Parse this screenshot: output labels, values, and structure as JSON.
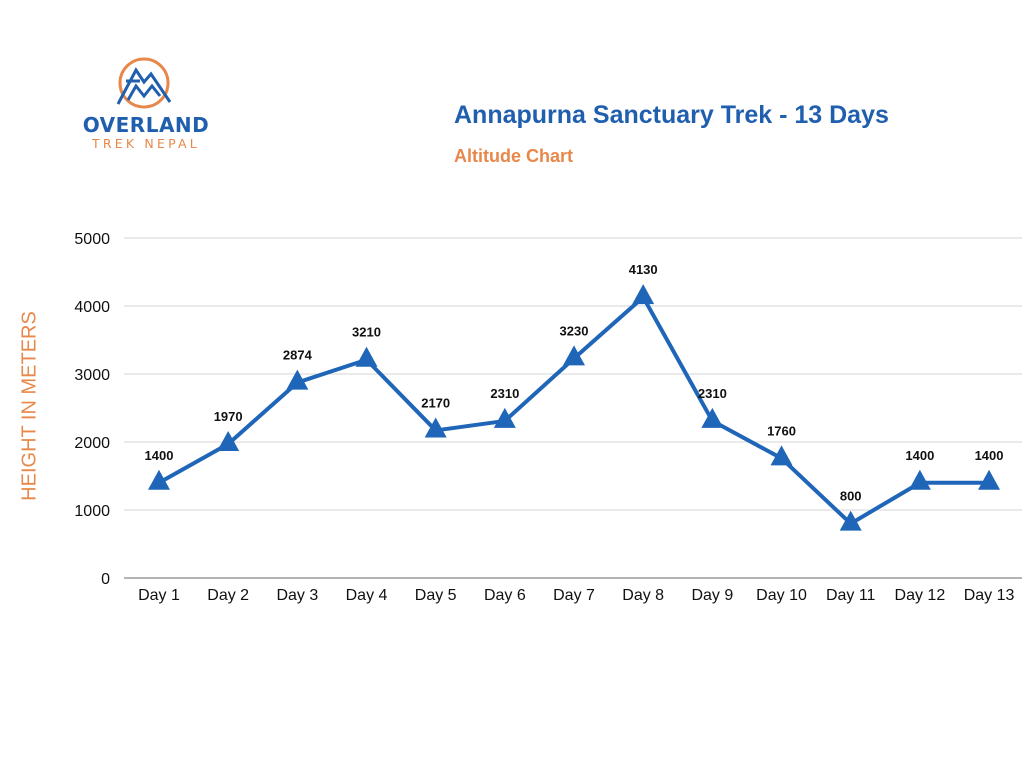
{
  "brand": {
    "name_line1": "OVERLAND",
    "name_line2": "TREK NEPAL",
    "logo_icon": "mountain-circle-icon",
    "primary_color": "#1f5fae",
    "accent_color": "#e8874a"
  },
  "header": {
    "title": "Annapurna Sanctuary Trek - 13 Days",
    "subtitle": "Altitude Chart"
  },
  "chart_data": {
    "type": "line",
    "title": "Annapurna Sanctuary Trek - 13 Days",
    "subtitle": "Altitude Chart",
    "xlabel": "",
    "ylabel": "HEIGHT IN METERS",
    "categories": [
      "Day 1",
      "Day 2",
      "Day 3",
      "Day 4",
      "Day 5",
      "Day 6",
      "Day 7",
      "Day 8",
      "Day 9",
      "Day 10",
      "Day 11",
      "Day 12",
      "Day 13"
    ],
    "series": [
      {
        "name": "Altitude",
        "values": [
          1400,
          1970,
          2874,
          3210,
          2170,
          2310,
          3230,
          4130,
          2310,
          1760,
          800,
          1400,
          1400
        ],
        "color": "#1f66b8",
        "marker": "triangle"
      }
    ],
    "data_labels": [
      "1400",
      "1970",
      "2874",
      "3210",
      "2170",
      "2310",
      "3230",
      "4130",
      "2310",
      "1760",
      "800",
      "1400",
      "1400"
    ],
    "yticks": [
      0,
      1000,
      2000,
      3000,
      4000,
      5000
    ],
    "ylim": [
      0,
      5000
    ],
    "grid": true,
    "legend": "none"
  }
}
